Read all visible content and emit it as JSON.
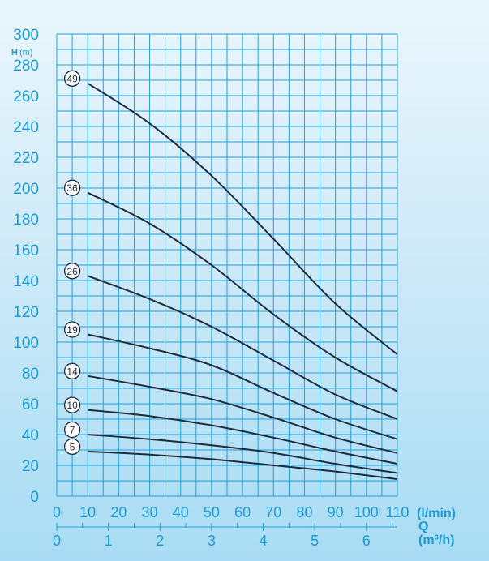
{
  "chart_data": {
    "type": "line",
    "y_axis": {
      "label_bold": "H",
      "label_unit": "(m)",
      "ylim": [
        0,
        300
      ],
      "ticks": [
        "0",
        "20",
        "40",
        "60",
        "80",
        "100",
        "120",
        "140",
        "160",
        "180",
        "200",
        "220",
        "240",
        "260",
        "280",
        "300"
      ]
    },
    "x_axis_primary": {
      "unit": "(l/min)",
      "xlim": [
        0,
        110
      ],
      "ticks": [
        "0",
        "10",
        "20",
        "30",
        "40",
        "50",
        "60",
        "70",
        "80",
        "90",
        "100",
        "110"
      ]
    },
    "x_axis_secondary": {
      "label": "Q",
      "unit": "(m³/h)",
      "ticks": [
        "0",
        "1",
        "2",
        "3",
        "4",
        "5",
        "6"
      ]
    },
    "grid": true,
    "series": [
      {
        "name": "49",
        "x": [
          10,
          30,
          50,
          70,
          90,
          110
        ],
        "y": [
          268,
          242,
          208,
          167,
          125,
          92
        ]
      },
      {
        "name": "36",
        "x": [
          10,
          30,
          50,
          70,
          90,
          110
        ],
        "y": [
          197,
          177,
          150,
          118,
          90,
          68
        ]
      },
      {
        "name": "26",
        "x": [
          10,
          30,
          50,
          70,
          90,
          110
        ],
        "y": [
          143,
          128,
          110,
          88,
          66,
          50
        ]
      },
      {
        "name": "19",
        "x": [
          10,
          30,
          50,
          70,
          90,
          110
        ],
        "y": [
          105,
          96,
          85,
          67,
          50,
          37
        ]
      },
      {
        "name": "14",
        "x": [
          10,
          30,
          50,
          70,
          90,
          110
        ],
        "y": [
          78,
          71,
          63,
          51,
          38,
          28
        ]
      },
      {
        "name": "10",
        "x": [
          10,
          30,
          50,
          70,
          90,
          110
        ],
        "y": [
          56,
          52,
          46,
          38,
          29,
          21
        ]
      },
      {
        "name": "7",
        "x": [
          10,
          30,
          50,
          70,
          90,
          110
        ],
        "y": [
          40,
          37,
          33,
          28,
          21,
          15
        ]
      },
      {
        "name": "5",
        "x": [
          10,
          30,
          50,
          70,
          90,
          110
        ],
        "y": [
          29,
          27,
          24,
          20,
          16,
          11
        ]
      }
    ]
  },
  "colors": {
    "grid": "#1fa2da",
    "text": "#1a9bd6",
    "curve": "#1f2b3c",
    "badge_fill": "#ffffff"
  }
}
